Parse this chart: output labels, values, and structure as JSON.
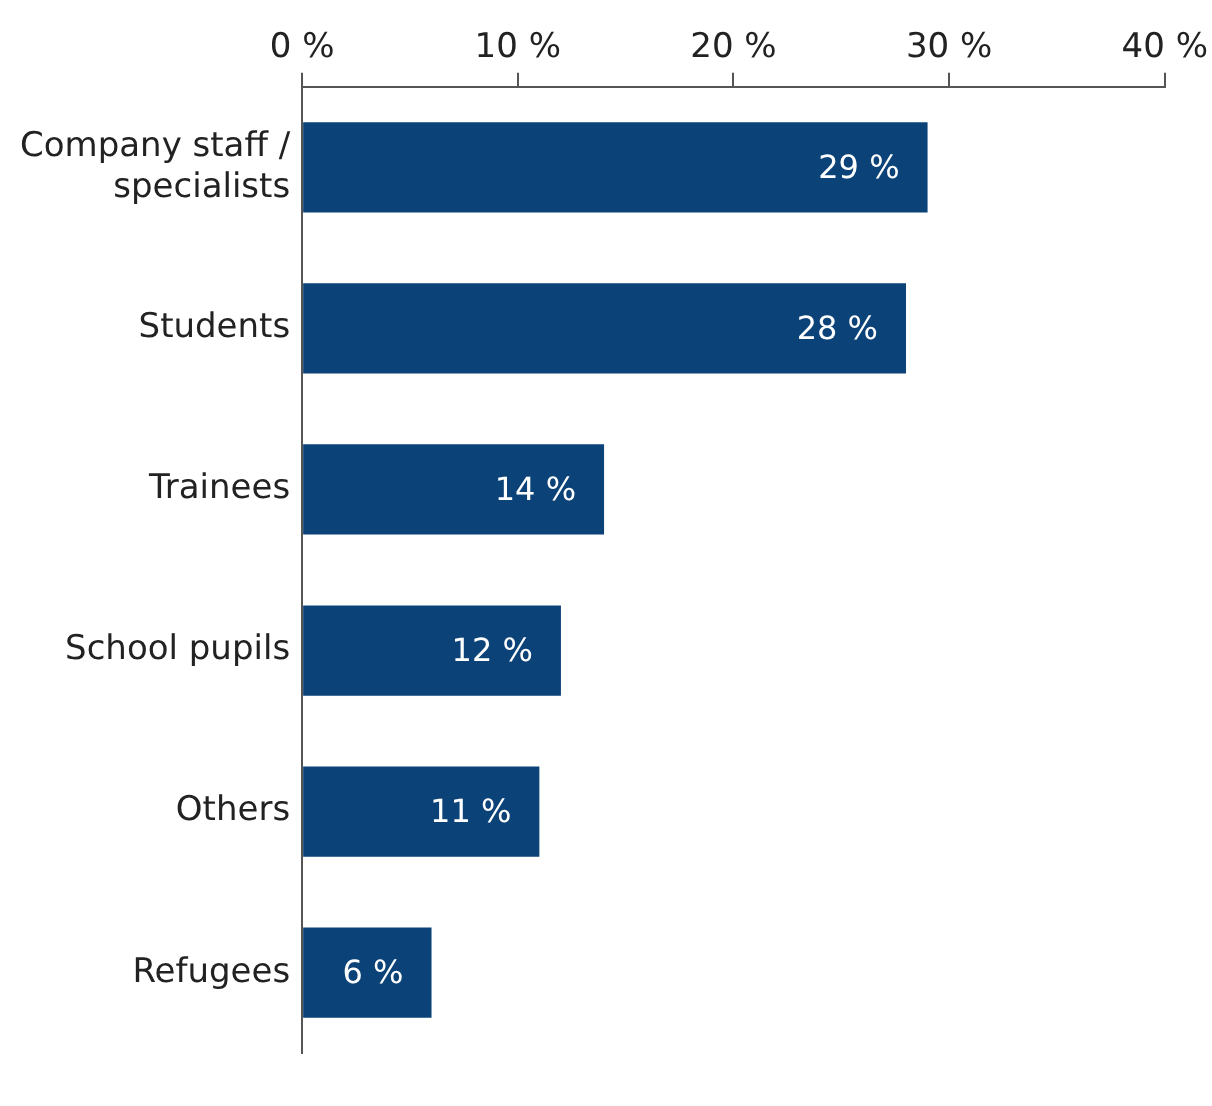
{
  "chart_data": {
    "type": "bar",
    "orientation": "horizontal",
    "categories": [
      "Company staff / specialists",
      "Students",
      "Trainees",
      "School pupils",
      "Others",
      "Refugees"
    ],
    "values": [
      29,
      28,
      14,
      12,
      11,
      6
    ],
    "value_labels": [
      "29 %",
      "28 %",
      "14 %",
      "12 %",
      "11 %",
      "6 %"
    ],
    "color": "#0b4277",
    "xlim": [
      0,
      40
    ],
    "xticks": [
      {
        "value": 0,
        "label": "0 %"
      },
      {
        "value": 10,
        "label": "10 %"
      },
      {
        "value": 20,
        "label": "20 %"
      },
      {
        "value": 30,
        "label": "30 %"
      },
      {
        "value": 40,
        "label": "40 %"
      }
    ],
    "grid": false,
    "legend": false
  }
}
